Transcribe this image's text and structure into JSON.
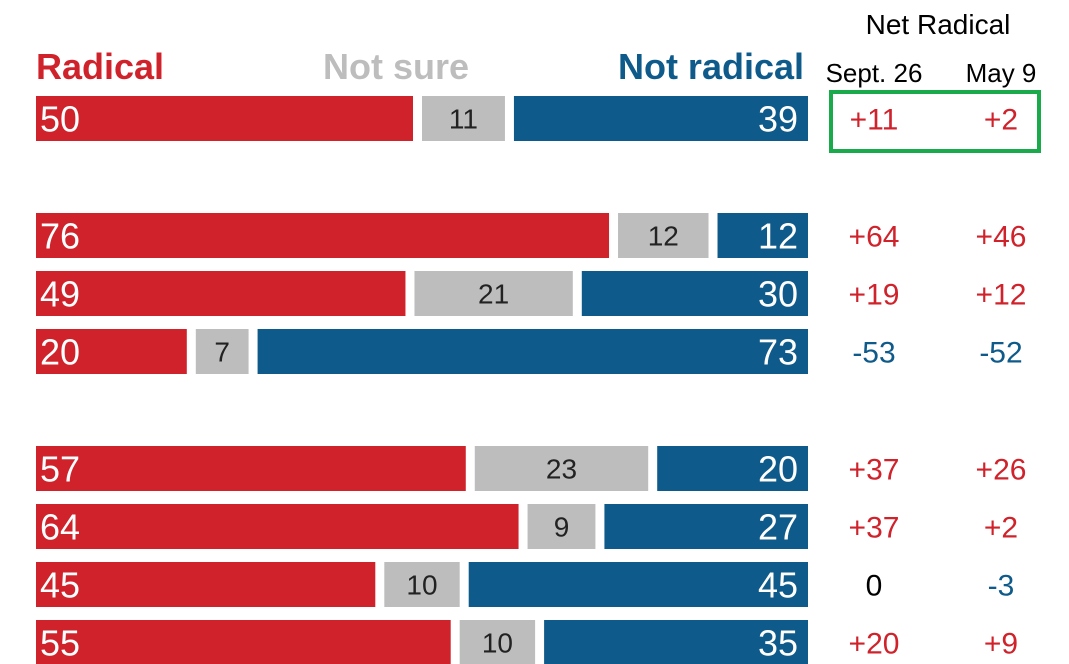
{
  "colors": {
    "radical": "#d0222b",
    "not_sure": "#bdbdbd",
    "not_radical": "#0e5a8a",
    "net_positive": "#d0222b",
    "net_negative": "#0e5a8a",
    "net_zero": "#000000",
    "highlight_box": "#1aaa4b"
  },
  "chart_data": {
    "type": "bar",
    "stacked": true,
    "orientation": "horizontal",
    "xlim": [
      0,
      100
    ],
    "legend": [
      "Radical",
      "Not sure",
      "Not radical"
    ],
    "series": [
      {
        "name": "Radical",
        "values": [
          50,
          76,
          49,
          20,
          57,
          64,
          45,
          55
        ]
      },
      {
        "name": "Not sure",
        "values": [
          11,
          12,
          21,
          7,
          23,
          9,
          10,
          10
        ]
      },
      {
        "name": "Not radical",
        "values": [
          39,
          12,
          30,
          73,
          20,
          27,
          45,
          35
        ]
      }
    ],
    "groups": [
      [
        0
      ],
      [
        1,
        2,
        3
      ],
      [
        4,
        5,
        6,
        7
      ]
    ],
    "net_table": {
      "title": "Net Radical",
      "columns": [
        "Sept. 26",
        "May 9"
      ],
      "rows": [
        [
          "+11",
          "+2"
        ],
        [
          "+64",
          "+46"
        ],
        [
          "+19",
          "+12"
        ],
        [
          "-53",
          "-52"
        ],
        [
          "+37",
          "+26"
        ],
        [
          "+37",
          "+2"
        ],
        [
          "0",
          "-3"
        ],
        [
          "+20",
          "+9"
        ]
      ],
      "highlighted_row": 0
    }
  }
}
